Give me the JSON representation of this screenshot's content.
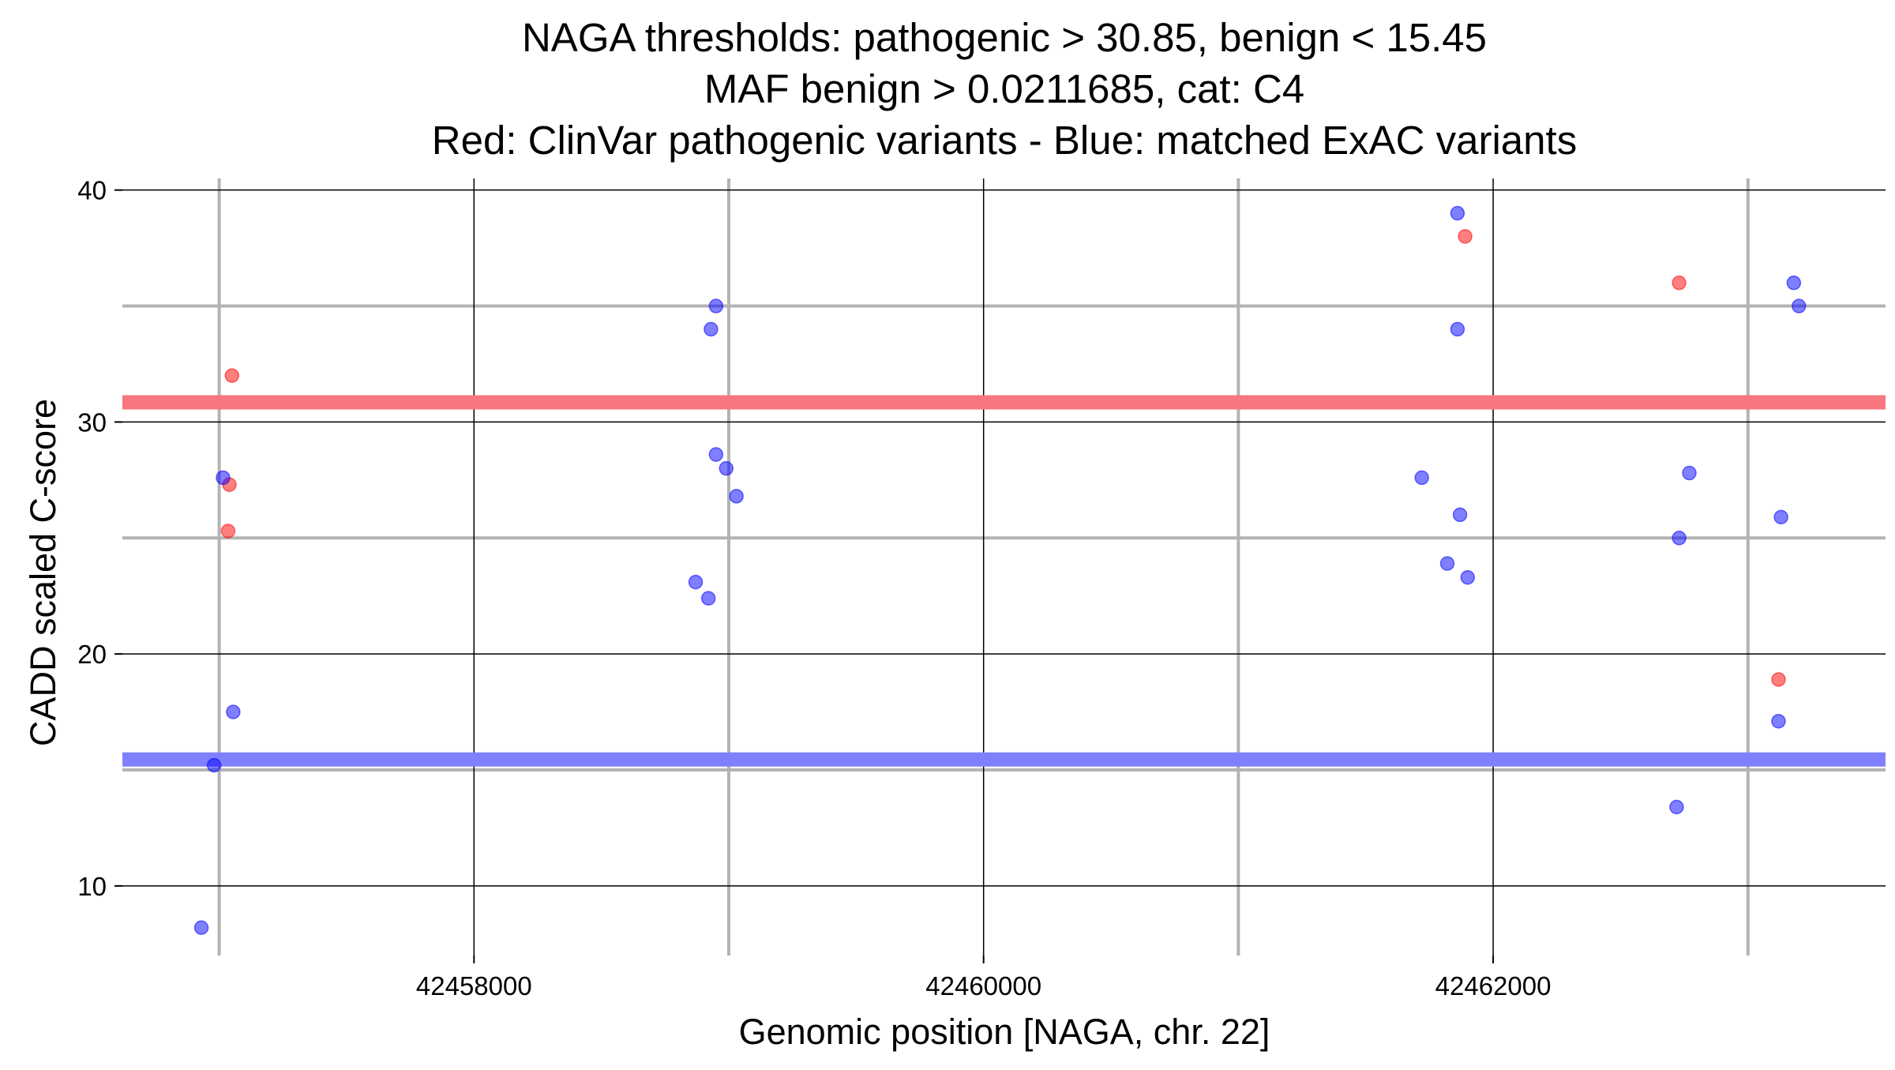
{
  "chart_data": {
    "type": "scatter",
    "title": [
      "NAGA thresholds: pathogenic > 30.85, benign < 15.45",
      "MAF benign > 0.0211685, cat: C4",
      "Red: ClinVar pathogenic variants - Blue: matched ExAC variants"
    ],
    "xlabel": "Genomic position [NAGA, chr. 22]",
    "ylabel": "CADD scaled C-score",
    "xlim": [
      42456620,
      42463540
    ],
    "ylim": [
      7,
      40.5
    ],
    "x_major_ticks": [
      42458000,
      42460000,
      42462000
    ],
    "x_minor_ticks": [
      42457000,
      42459000,
      42461000,
      42463000
    ],
    "x_tick_labels": [
      "42458000",
      "42460000",
      "42462000"
    ],
    "y_major_ticks": [
      10,
      20,
      30,
      40
    ],
    "y_minor_ticks": [
      15,
      25,
      35
    ],
    "y_tick_labels": [
      "10",
      "20",
      "30",
      "40"
    ],
    "grid": "major and minor, both axes",
    "legend": "none",
    "thresholds": [
      {
        "axis": "y",
        "value": 30.85,
        "color": "#f8767d"
      },
      {
        "axis": "y",
        "value": 15.45,
        "color": "#8080ff"
      }
    ],
    "series": [
      {
        "color": "#ff0000",
        "points": [
          {
            "x": 42457050,
            "y": 32.0
          },
          {
            "x": 42457040,
            "y": 27.3
          },
          {
            "x": 42457035,
            "y": 25.3
          },
          {
            "x": 42461890,
            "y": 38.0
          },
          {
            "x": 42462730,
            "y": 36.0
          },
          {
            "x": 42463120,
            "y": 18.9
          }
        ]
      },
      {
        "color": "#0000ff",
        "points": [
          {
            "x": 42457015,
            "y": 27.6
          },
          {
            "x": 42457055,
            "y": 17.5
          },
          {
            "x": 42456980,
            "y": 15.2
          },
          {
            "x": 42456930,
            "y": 8.2
          },
          {
            "x": 42458950,
            "y": 35.0
          },
          {
            "x": 42458930,
            "y": 34.0
          },
          {
            "x": 42458950,
            "y": 28.6
          },
          {
            "x": 42458990,
            "y": 28.0
          },
          {
            "x": 42459030,
            "y": 26.8
          },
          {
            "x": 42458870,
            "y": 23.1
          },
          {
            "x": 42458920,
            "y": 22.4
          },
          {
            "x": 42461860,
            "y": 39.0
          },
          {
            "x": 42461860,
            "y": 34.0
          },
          {
            "x": 42461720,
            "y": 27.6
          },
          {
            "x": 42461870,
            "y": 26.0
          },
          {
            "x": 42461820,
            "y": 23.9
          },
          {
            "x": 42461900,
            "y": 23.3
          },
          {
            "x": 42462770,
            "y": 27.8
          },
          {
            "x": 42462730,
            "y": 25.0
          },
          {
            "x": 42462720,
            "y": 13.4
          },
          {
            "x": 42463180,
            "y": 36.0
          },
          {
            "x": 42463200,
            "y": 35.0
          },
          {
            "x": 42463130,
            "y": 25.9
          },
          {
            "x": 42463120,
            "y": 17.1
          }
        ]
      }
    ]
  }
}
